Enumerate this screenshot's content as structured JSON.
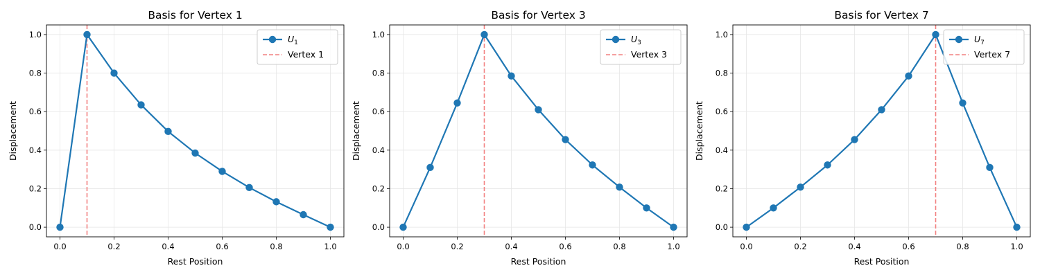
{
  "colors": {
    "series": "#1f77b4",
    "vertex_line": "#f28080",
    "grid": "#e6e6e6",
    "axis": "#000000"
  },
  "chart_data": [
    {
      "type": "line",
      "title": "Basis for Vertex 1",
      "xlabel": "Rest Position",
      "ylabel": "Displacement",
      "xlim": [
        -0.05,
        1.05
      ],
      "ylim": [
        -0.05,
        1.05
      ],
      "xticks": [
        0.0,
        0.2,
        0.4,
        0.6,
        0.8,
        1.0
      ],
      "xtick_labels": [
        "0.0",
        "0.2",
        "0.4",
        "0.6",
        "0.8",
        "1.0"
      ],
      "yticks": [
        0.0,
        0.2,
        0.4,
        0.6,
        0.8,
        1.0
      ],
      "ytick_labels": [
        "0.0",
        "0.2",
        "0.4",
        "0.6",
        "0.8",
        "1.0"
      ],
      "grid": true,
      "legend_position": "top-right",
      "series": [
        {
          "name_base": "U",
          "name_sub": "1",
          "x": [
            0.0,
            0.1,
            0.2,
            0.3,
            0.4,
            0.5,
            0.6,
            0.7,
            0.8,
            0.9,
            1.0
          ],
          "y": [
            0.0,
            1.0,
            0.8,
            0.635,
            0.497,
            0.385,
            0.29,
            0.206,
            0.132,
            0.065,
            0.0
          ]
        }
      ],
      "vertex_line": {
        "x": 0.1,
        "label": "Vertex 1"
      }
    },
    {
      "type": "line",
      "title": "Basis for Vertex 3",
      "xlabel": "Rest Position",
      "ylabel": "Displacement",
      "xlim": [
        -0.05,
        1.05
      ],
      "ylim": [
        -0.05,
        1.05
      ],
      "xticks": [
        0.0,
        0.2,
        0.4,
        0.6,
        0.8,
        1.0
      ],
      "xtick_labels": [
        "0.0",
        "0.2",
        "0.4",
        "0.6",
        "0.8",
        "1.0"
      ],
      "yticks": [
        0.0,
        0.2,
        0.4,
        0.6,
        0.8,
        1.0
      ],
      "ytick_labels": [
        "0.0",
        "0.2",
        "0.4",
        "0.6",
        "0.8",
        "1.0"
      ],
      "grid": true,
      "legend_position": "top-right",
      "series": [
        {
          "name_base": "U",
          "name_sub": "3",
          "x": [
            0.0,
            0.1,
            0.2,
            0.3,
            0.4,
            0.5,
            0.6,
            0.7,
            0.8,
            0.9,
            1.0
          ],
          "y": [
            0.0,
            0.31,
            0.645,
            1.0,
            0.785,
            0.61,
            0.455,
            0.323,
            0.208,
            0.1,
            0.0
          ]
        }
      ],
      "vertex_line": {
        "x": 0.3,
        "label": "Vertex 3"
      }
    },
    {
      "type": "line",
      "title": "Basis for Vertex 7",
      "xlabel": "Rest Position",
      "ylabel": "Displacement",
      "xlim": [
        -0.05,
        1.05
      ],
      "ylim": [
        -0.05,
        1.05
      ],
      "xticks": [
        0.0,
        0.2,
        0.4,
        0.6,
        0.8,
        1.0
      ],
      "xtick_labels": [
        "0.0",
        "0.2",
        "0.4",
        "0.6",
        "0.8",
        "1.0"
      ],
      "yticks": [
        0.0,
        0.2,
        0.4,
        0.6,
        0.8,
        1.0
      ],
      "ytick_labels": [
        "0.0",
        "0.2",
        "0.4",
        "0.6",
        "0.8",
        "1.0"
      ],
      "grid": true,
      "legend_position": "top-right",
      "series": [
        {
          "name_base": "U",
          "name_sub": "7",
          "x": [
            0.0,
            0.1,
            0.2,
            0.3,
            0.4,
            0.5,
            0.6,
            0.7,
            0.8,
            0.9,
            1.0
          ],
          "y": [
            0.0,
            0.1,
            0.208,
            0.323,
            0.455,
            0.61,
            0.785,
            1.0,
            0.645,
            0.31,
            0.0
          ]
        }
      ],
      "vertex_line": {
        "x": 0.7,
        "label": "Vertex 7"
      }
    }
  ]
}
